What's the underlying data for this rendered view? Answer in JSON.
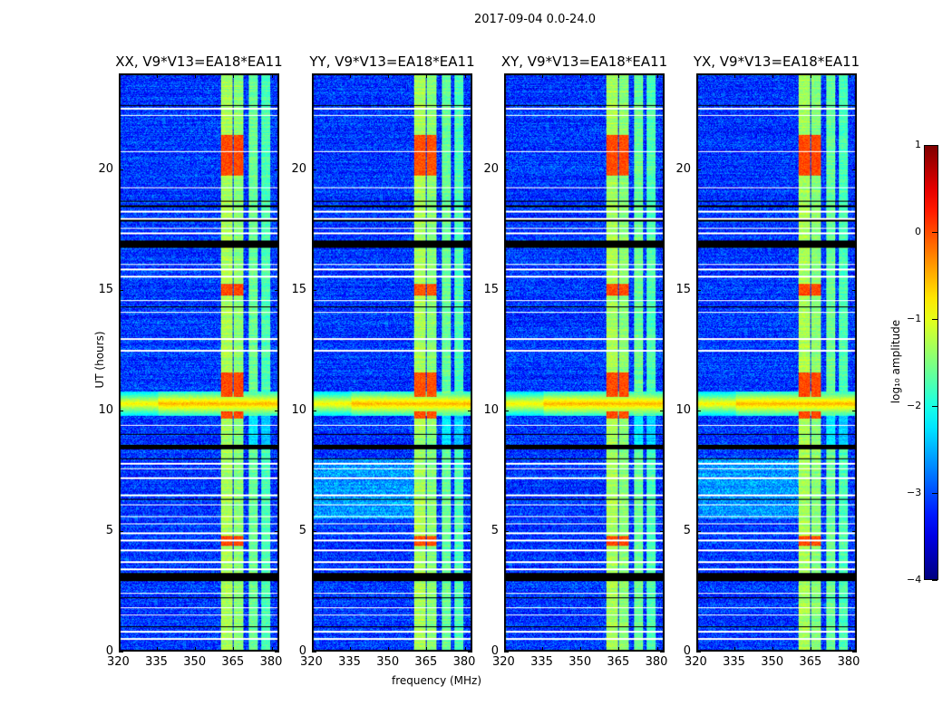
{
  "chart_data": {
    "type": "heatmap",
    "title": "2017-09-04 0.0-24.0",
    "xlabel": "frequency (MHz)",
    "ylabel": "UT (hours)",
    "xlim": [
      320,
      383
    ],
    "ylim": [
      0,
      24
    ],
    "xticks": [
      320,
      335,
      350,
      365,
      380
    ],
    "yticks": [
      0,
      5,
      10,
      15,
      20
    ],
    "panels": [
      {
        "title": "XX, V9*V13=EA18*EA11",
        "red_scale": 0.9
      },
      {
        "title": "YY, V9*V13=EA18*EA11",
        "red_scale": 1.1
      },
      {
        "title": "XY, V9*V13=EA18*EA11",
        "red_scale": 0.95
      },
      {
        "title": "YX, V9*V13=EA18*EA11",
        "red_scale": 0.9
      }
    ],
    "colorbar": {
      "label": "log₁₀ amplitude",
      "range": [
        -4,
        1
      ],
      "ticks": [
        "1",
        "0",
        "−1",
        "−2",
        "−3",
        "−4"
      ],
      "colormap": "jet"
    },
    "background_level": -3.1,
    "rfi_bands_mhz": [
      [
        360,
        364.5
      ],
      [
        365,
        369
      ],
      [
        371,
        374.5
      ],
      [
        376,
        379.5
      ]
    ],
    "broadband_ut": [
      9.8,
      10.8
    ],
    "strong_ut_ranges": [
      [
        19.8,
        21.5
      ],
      [
        14.8,
        15.3
      ],
      [
        10.6,
        11.6
      ],
      [
        9.7,
        10.0
      ],
      [
        4.4,
        4.8
      ]
    ],
    "flagged_white_ut": [
      22.6,
      22.3,
      20.8,
      19.3,
      18.3,
      18.0,
      17.6,
      17.4,
      16.1,
      15.9,
      15.6,
      14.6,
      14.1,
      13.0,
      12.5,
      9.4,
      7.8,
      7.6,
      7.2,
      6.5,
      6.1,
      5.6,
      5.3,
      4.9,
      4.6,
      4.2,
      3.7,
      3.4,
      2.4,
      1.8,
      1.5,
      0.8,
      0.5
    ],
    "flagged_black_ut": [
      [
        22.7,
        22.75
      ],
      [
        18.7,
        18.75
      ],
      [
        16.8,
        17.1
      ],
      [
        14.3,
        14.35
      ],
      [
        9.0,
        9.05
      ],
      [
        8.4,
        8.6
      ],
      [
        8.0,
        8.05
      ],
      [
        6.3,
        6.35
      ],
      [
        2.9,
        3.25
      ],
      [
        2.2,
        2.25
      ],
      [
        1.0,
        1.05
      ],
      [
        18.5,
        18.55
      ],
      [
        17.9,
        17.95
      ]
    ]
  }
}
